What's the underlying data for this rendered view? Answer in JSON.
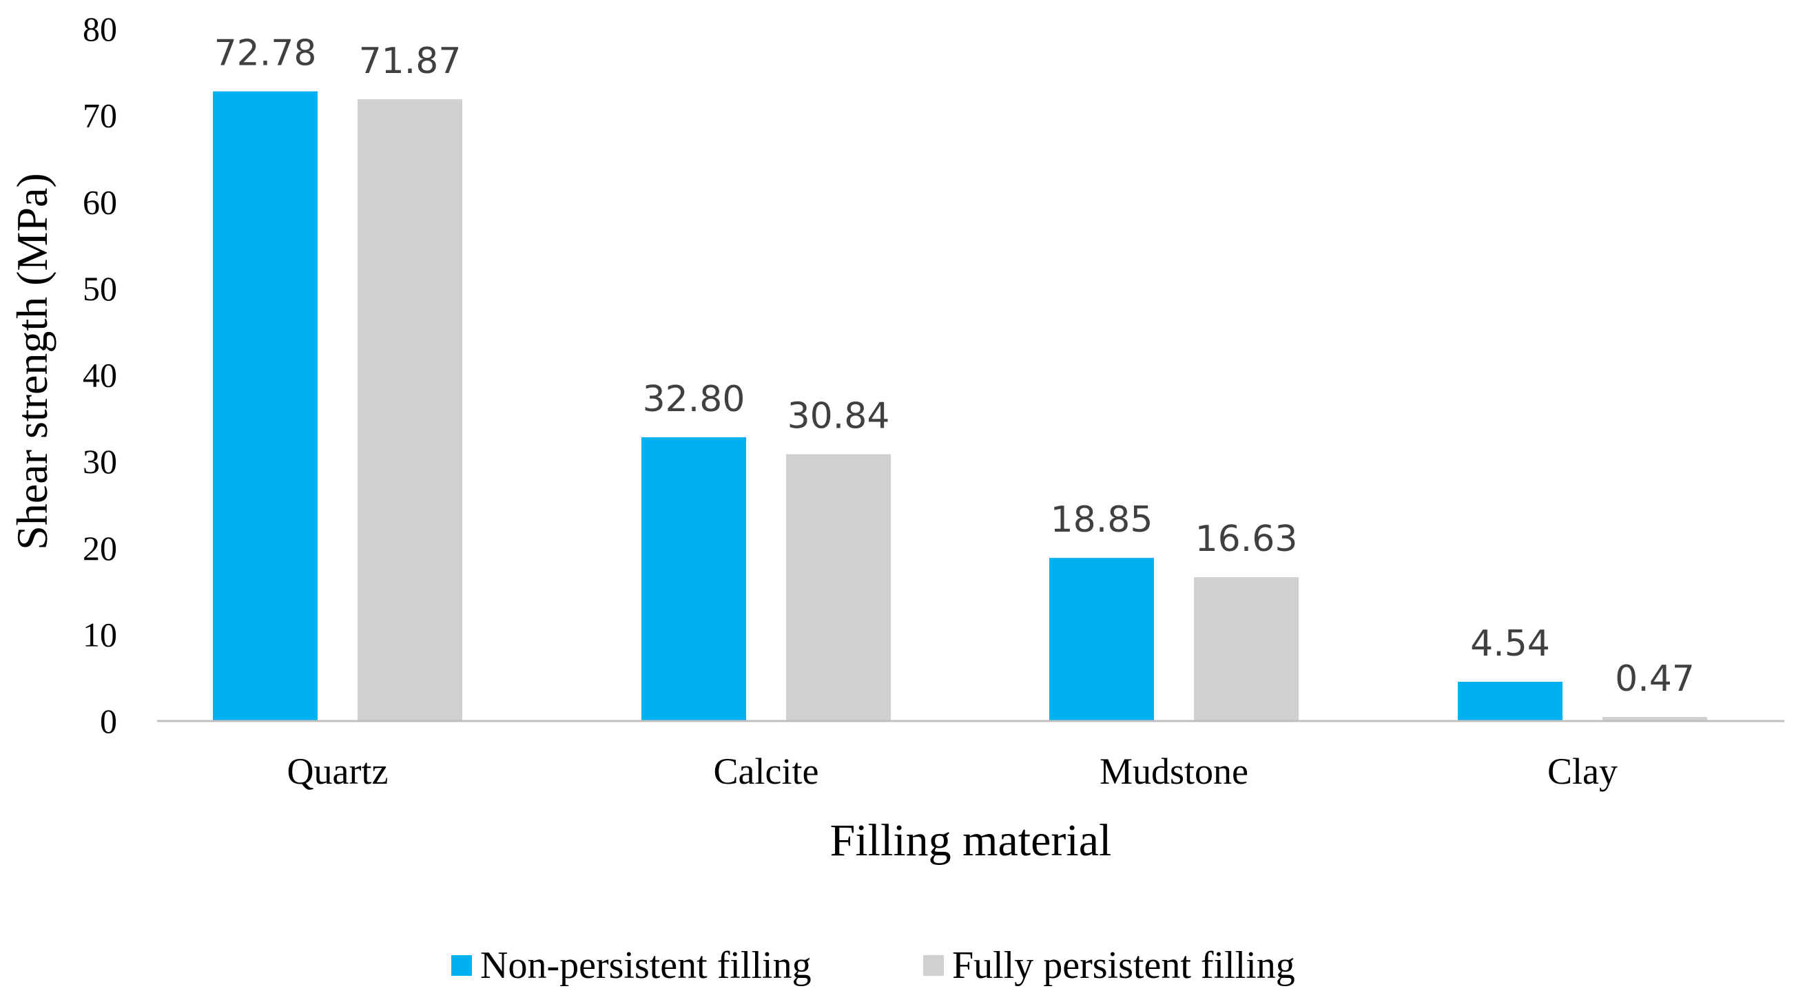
{
  "chart_data": {
    "type": "bar",
    "title": "",
    "xlabel": "Filling material",
    "ylabel": "Shear strength (MPa)",
    "ylim": [
      0,
      80
    ],
    "yticks": [
      0,
      10,
      20,
      30,
      40,
      50,
      60,
      70,
      80
    ],
    "categories": [
      "Quartz",
      "Calcite",
      "Mudstone",
      "Clay"
    ],
    "series": [
      {
        "name": "Non-persistent filling",
        "color": "#00B0F0",
        "values": [
          72.78,
          32.8,
          18.85,
          4.54
        ],
        "labels": [
          "72.78",
          "32.80",
          "18.85",
          "4.54"
        ]
      },
      {
        "name": "Fully persistent filling",
        "color": "#D0D0D0",
        "values": [
          71.87,
          30.84,
          16.63,
          0.47
        ],
        "labels": [
          "71.87",
          "30.84",
          "16.63",
          "0.47"
        ]
      }
    ],
    "grid": false,
    "legend": "bottom-center"
  }
}
